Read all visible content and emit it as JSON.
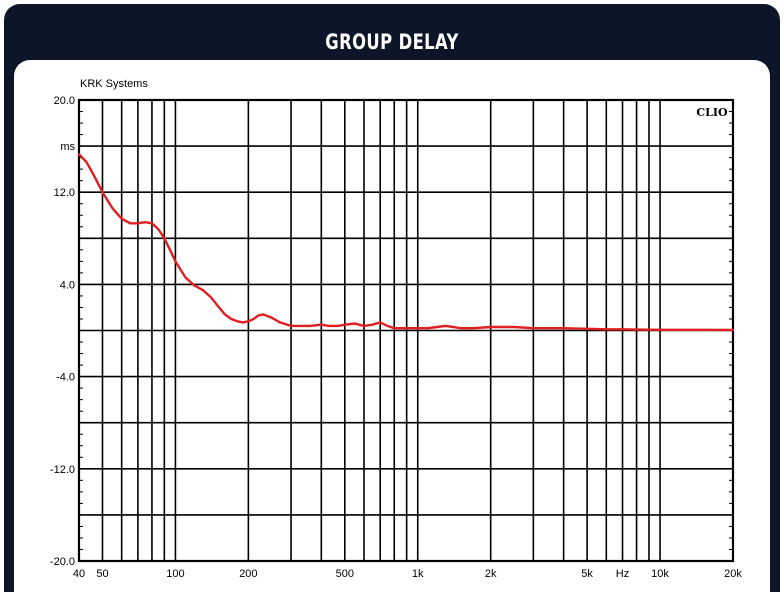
{
  "header": {
    "title": "GROUP DELAY"
  },
  "chart_data": {
    "type": "line",
    "title": "GROUP DELAY",
    "subtitle": "KRK Systems",
    "brand_label": "CLIO",
    "xlabel": "Hz",
    "ylabel": "ms",
    "x_scale": "log",
    "xlim": [
      40,
      20000
    ],
    "ylim": [
      -20,
      20
    ],
    "grid": true,
    "y_ticks": [
      {
        "value": 20,
        "label": "20.0"
      },
      {
        "value": 16,
        "label": "ms"
      },
      {
        "value": 12,
        "label": "12.0"
      },
      {
        "value": 4,
        "label": "4.0"
      },
      {
        "value": -4,
        "label": "-4.0"
      },
      {
        "value": -12,
        "label": "-12.0"
      },
      {
        "value": -20,
        "label": "-20.0"
      }
    ],
    "x_ticks": [
      {
        "value": 40,
        "label": "40"
      },
      {
        "value": 50,
        "label": "50"
      },
      {
        "value": 100,
        "label": "100"
      },
      {
        "value": 200,
        "label": "200"
      },
      {
        "value": 500,
        "label": "500"
      },
      {
        "value": 1000,
        "label": "1k"
      },
      {
        "value": 2000,
        "label": "2k"
      },
      {
        "value": 5000,
        "label": "5k"
      },
      {
        "value": 7000,
        "label": "Hz"
      },
      {
        "value": 10000,
        "label": "10k"
      },
      {
        "value": 20000,
        "label": "20k"
      }
    ],
    "series": [
      {
        "color": "#e02020",
        "x": [
          40,
          43,
          46,
          50,
          55,
          60,
          65,
          70,
          75,
          80,
          85,
          90,
          95,
          100,
          110,
          120,
          130,
          140,
          150,
          160,
          170,
          180,
          190,
          200,
          210,
          220,
          230,
          250,
          270,
          300,
          330,
          360,
          400,
          430,
          470,
          500,
          550,
          600,
          650,
          700,
          750,
          800,
          900,
          1000,
          1100,
          1200,
          1300,
          1400,
          1500,
          1700,
          2000,
          2500,
          3000,
          4000,
          5000,
          6000,
          7000,
          8000,
          10000,
          12000,
          15000,
          20000
        ],
        "y": [
          15.3,
          14.6,
          13.5,
          12.0,
          10.6,
          9.7,
          9.3,
          9.3,
          9.4,
          9.3,
          8.8,
          8.0,
          7.0,
          6.0,
          4.6,
          3.9,
          3.5,
          2.9,
          2.1,
          1.4,
          1.0,
          0.8,
          0.7,
          0.8,
          1.0,
          1.3,
          1.4,
          1.1,
          0.7,
          0.4,
          0.4,
          0.4,
          0.5,
          0.4,
          0.4,
          0.5,
          0.6,
          0.4,
          0.5,
          0.7,
          0.4,
          0.2,
          0.2,
          0.2,
          0.2,
          0.3,
          0.4,
          0.3,
          0.2,
          0.2,
          0.3,
          0.3,
          0.2,
          0.2,
          0.15,
          0.1,
          0.1,
          0.08,
          0.06,
          0.06,
          0.06,
          0.05
        ]
      }
    ]
  }
}
